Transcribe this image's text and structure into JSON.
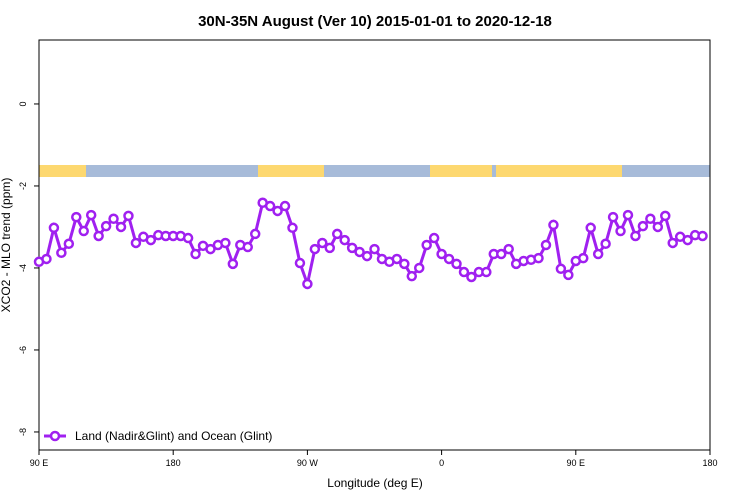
{
  "chart_data": {
    "type": "line",
    "title": "30N-35N August (Ver 10)   2015-01-01 to 2020-12-18",
    "x_label": "Longitude (deg E)",
    "y_label": "XCO2 - MLO trend (ppm)",
    "xlim": [
      90,
      540
    ],
    "xticks": [
      {
        "value": 90,
        "label": "90 E"
      },
      180,
      {
        "value": 270,
        "label": "90 W"
      },
      {
        "value": 360,
        "label": "0"
      },
      {
        "value": 450,
        "label": "90 E"
      },
      {
        "value": 540,
        "label": "180"
      }
    ],
    "ylim": [
      -8.44,
      1.56
    ],
    "yticks": [
      0,
      -2,
      -4,
      -6,
      -8
    ],
    "legend": "bottom-left",
    "series": [
      {
        "name": "Land (Nadir&Glint) and Ocean (Glint)",
        "color": "#a020f0",
        "x": [
          90,
          95,
          100,
          105,
          110,
          115,
          120,
          125,
          130,
          135,
          140,
          145,
          150,
          155,
          160,
          165,
          170,
          175,
          180,
          185,
          190,
          195,
          200,
          205,
          210,
          215,
          220,
          225,
          230,
          235,
          240,
          245,
          250,
          255,
          260,
          265,
          270,
          275,
          280,
          285,
          290,
          295,
          300,
          305,
          310,
          315,
          320,
          325,
          330,
          335,
          340,
          345,
          350,
          355,
          360,
          365,
          370,
          375,
          380,
          385,
          390,
          395,
          400,
          405,
          410,
          415,
          420,
          425,
          430,
          435,
          440,
          445,
          450,
          455,
          460,
          465,
          470,
          475,
          480,
          485,
          490,
          495,
          500,
          505,
          510,
          515,
          520,
          525,
          530,
          535
        ],
        "values": [
          -3.85,
          -3.78,
          -3.02,
          -3.63,
          -3.41,
          -2.76,
          -3.1,
          -2.71,
          -3.22,
          -2.98,
          -2.8,
          -3.0,
          -2.73,
          -3.39,
          -3.24,
          -3.32,
          -3.2,
          -3.22,
          -3.22,
          -3.22,
          -3.27,
          -3.66,
          -3.46,
          -3.54,
          -3.44,
          -3.39,
          -3.9,
          -3.44,
          -3.49,
          -3.17,
          -2.41,
          -2.49,
          -2.61,
          -2.49,
          -3.02,
          -3.88,
          -4.39,
          -3.54,
          -3.39,
          -3.51,
          -3.17,
          -3.32,
          -3.51,
          -3.61,
          -3.71,
          -3.54,
          -3.78,
          -3.85,
          -3.78,
          -3.9,
          -4.2,
          -4.0,
          -3.44,
          -3.27,
          -3.66,
          -3.78,
          -3.9,
          -4.1,
          -4.22,
          -4.1,
          -4.1,
          -3.66,
          -3.66,
          -3.54,
          -3.9,
          -3.83,
          -3.8,
          -3.76,
          -3.44,
          -2.95,
          -4.02,
          -4.17,
          -3.83,
          -3.76,
          -3.02,
          -3.66,
          -3.41,
          -2.76,
          -3.1,
          -2.71,
          -3.22,
          -2.98,
          -2.8,
          -3.0,
          -2.73,
          -3.39,
          -3.24,
          -3.32,
          -3.2,
          -3.22
        ]
      }
    ]
  }
}
